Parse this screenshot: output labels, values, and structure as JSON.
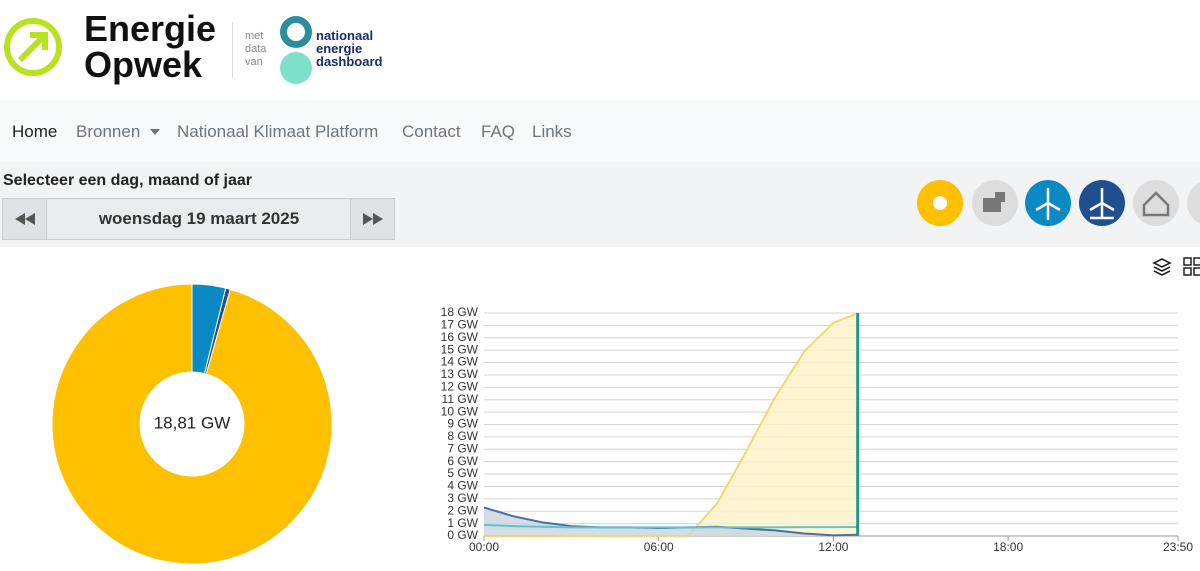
{
  "header": {
    "logo_line1": "Energie",
    "logo_line2": "Opwek",
    "data_from": [
      "met",
      "data",
      "van"
    ],
    "partner": [
      "nationaal",
      "energie",
      "dashboard"
    ]
  },
  "nav": [
    "Home",
    "Bronnen",
    "Nationaal Klimaat Platform",
    "Contact",
    "FAQ",
    "Links"
  ],
  "selector": {
    "prompt": "Selecteer een dag, maand of jaar",
    "date": "woensdag 19 maart 2025"
  },
  "chart_data": [
    {
      "type": "pie",
      "values": [
        0.73,
        0.1,
        17.98
      ],
      "colors": [
        "#0a8ac4",
        "#1f4f8f",
        "#ffc000"
      ],
      "center_label": "18,81 GW"
    },
    {
      "type": "area",
      "x": [
        0,
        60,
        120,
        180,
        240,
        300,
        360,
        420,
        480,
        540,
        600,
        660,
        720,
        770
      ],
      "series": [
        {
          "color": "#4a6fa0",
          "fill": "#c9d3e0",
          "values": [
            2.3,
            1.6,
            1.1,
            0.8,
            0.7,
            0.7,
            0.65,
            0.7,
            0.75,
            0.6,
            0.45,
            0.2,
            0.05,
            0.1
          ]
        },
        {
          "color": "#5fc4d0",
          "fill": "none",
          "values": [
            0.9,
            0.8,
            0.75,
            0.7,
            0.7,
            0.7,
            0.7,
            0.7,
            0.7,
            0.7,
            0.7,
            0.72,
            0.72,
            0.73
          ]
        },
        {
          "color": "#f5d76e",
          "fill": "#fff2c7",
          "values": [
            0,
            0,
            0,
            0,
            0,
            0,
            0,
            0,
            2.6,
            6.8,
            11.2,
            14.9,
            17.2,
            17.98
          ]
        }
      ],
      "now_color": "#1a9a8a",
      "xlim": [
        0,
        1430
      ],
      "xticks": [
        {
          "value": 0,
          "label": "00:00"
        },
        {
          "value": 360,
          "label": "06:00"
        },
        {
          "value": 720,
          "label": "12:00"
        },
        {
          "value": 1080,
          "label": "18:00"
        },
        {
          "value": 1430,
          "label": "23:50"
        }
      ],
      "ylim": [
        0,
        18
      ],
      "yticks": [
        {
          "value": 0,
          "label": "0 GW"
        },
        {
          "value": 1,
          "label": "1 GW"
        },
        {
          "value": 2,
          "label": "2 GW"
        },
        {
          "value": 3,
          "label": "3 GW"
        },
        {
          "value": 4,
          "label": "4 GW"
        },
        {
          "value": 5,
          "label": "5 GW"
        },
        {
          "value": 6,
          "label": "6 GW"
        },
        {
          "value": 7,
          "label": "7 GW"
        },
        {
          "value": 8,
          "label": "8 GW"
        },
        {
          "value": 9,
          "label": "9 GW"
        },
        {
          "value": 10,
          "label": "10 GW"
        },
        {
          "value": 11,
          "label": "11 GW"
        },
        {
          "value": 12,
          "label": "12 GW"
        },
        {
          "value": 13,
          "label": "13 GW"
        },
        {
          "value": 14,
          "label": "14 GW"
        },
        {
          "value": 15,
          "label": "15 GW"
        },
        {
          "value": 16,
          "label": "16 GW"
        },
        {
          "value": 17,
          "label": "17 GW"
        },
        {
          "value": 18,
          "label": "18 GW"
        }
      ],
      "grid": true
    }
  ]
}
